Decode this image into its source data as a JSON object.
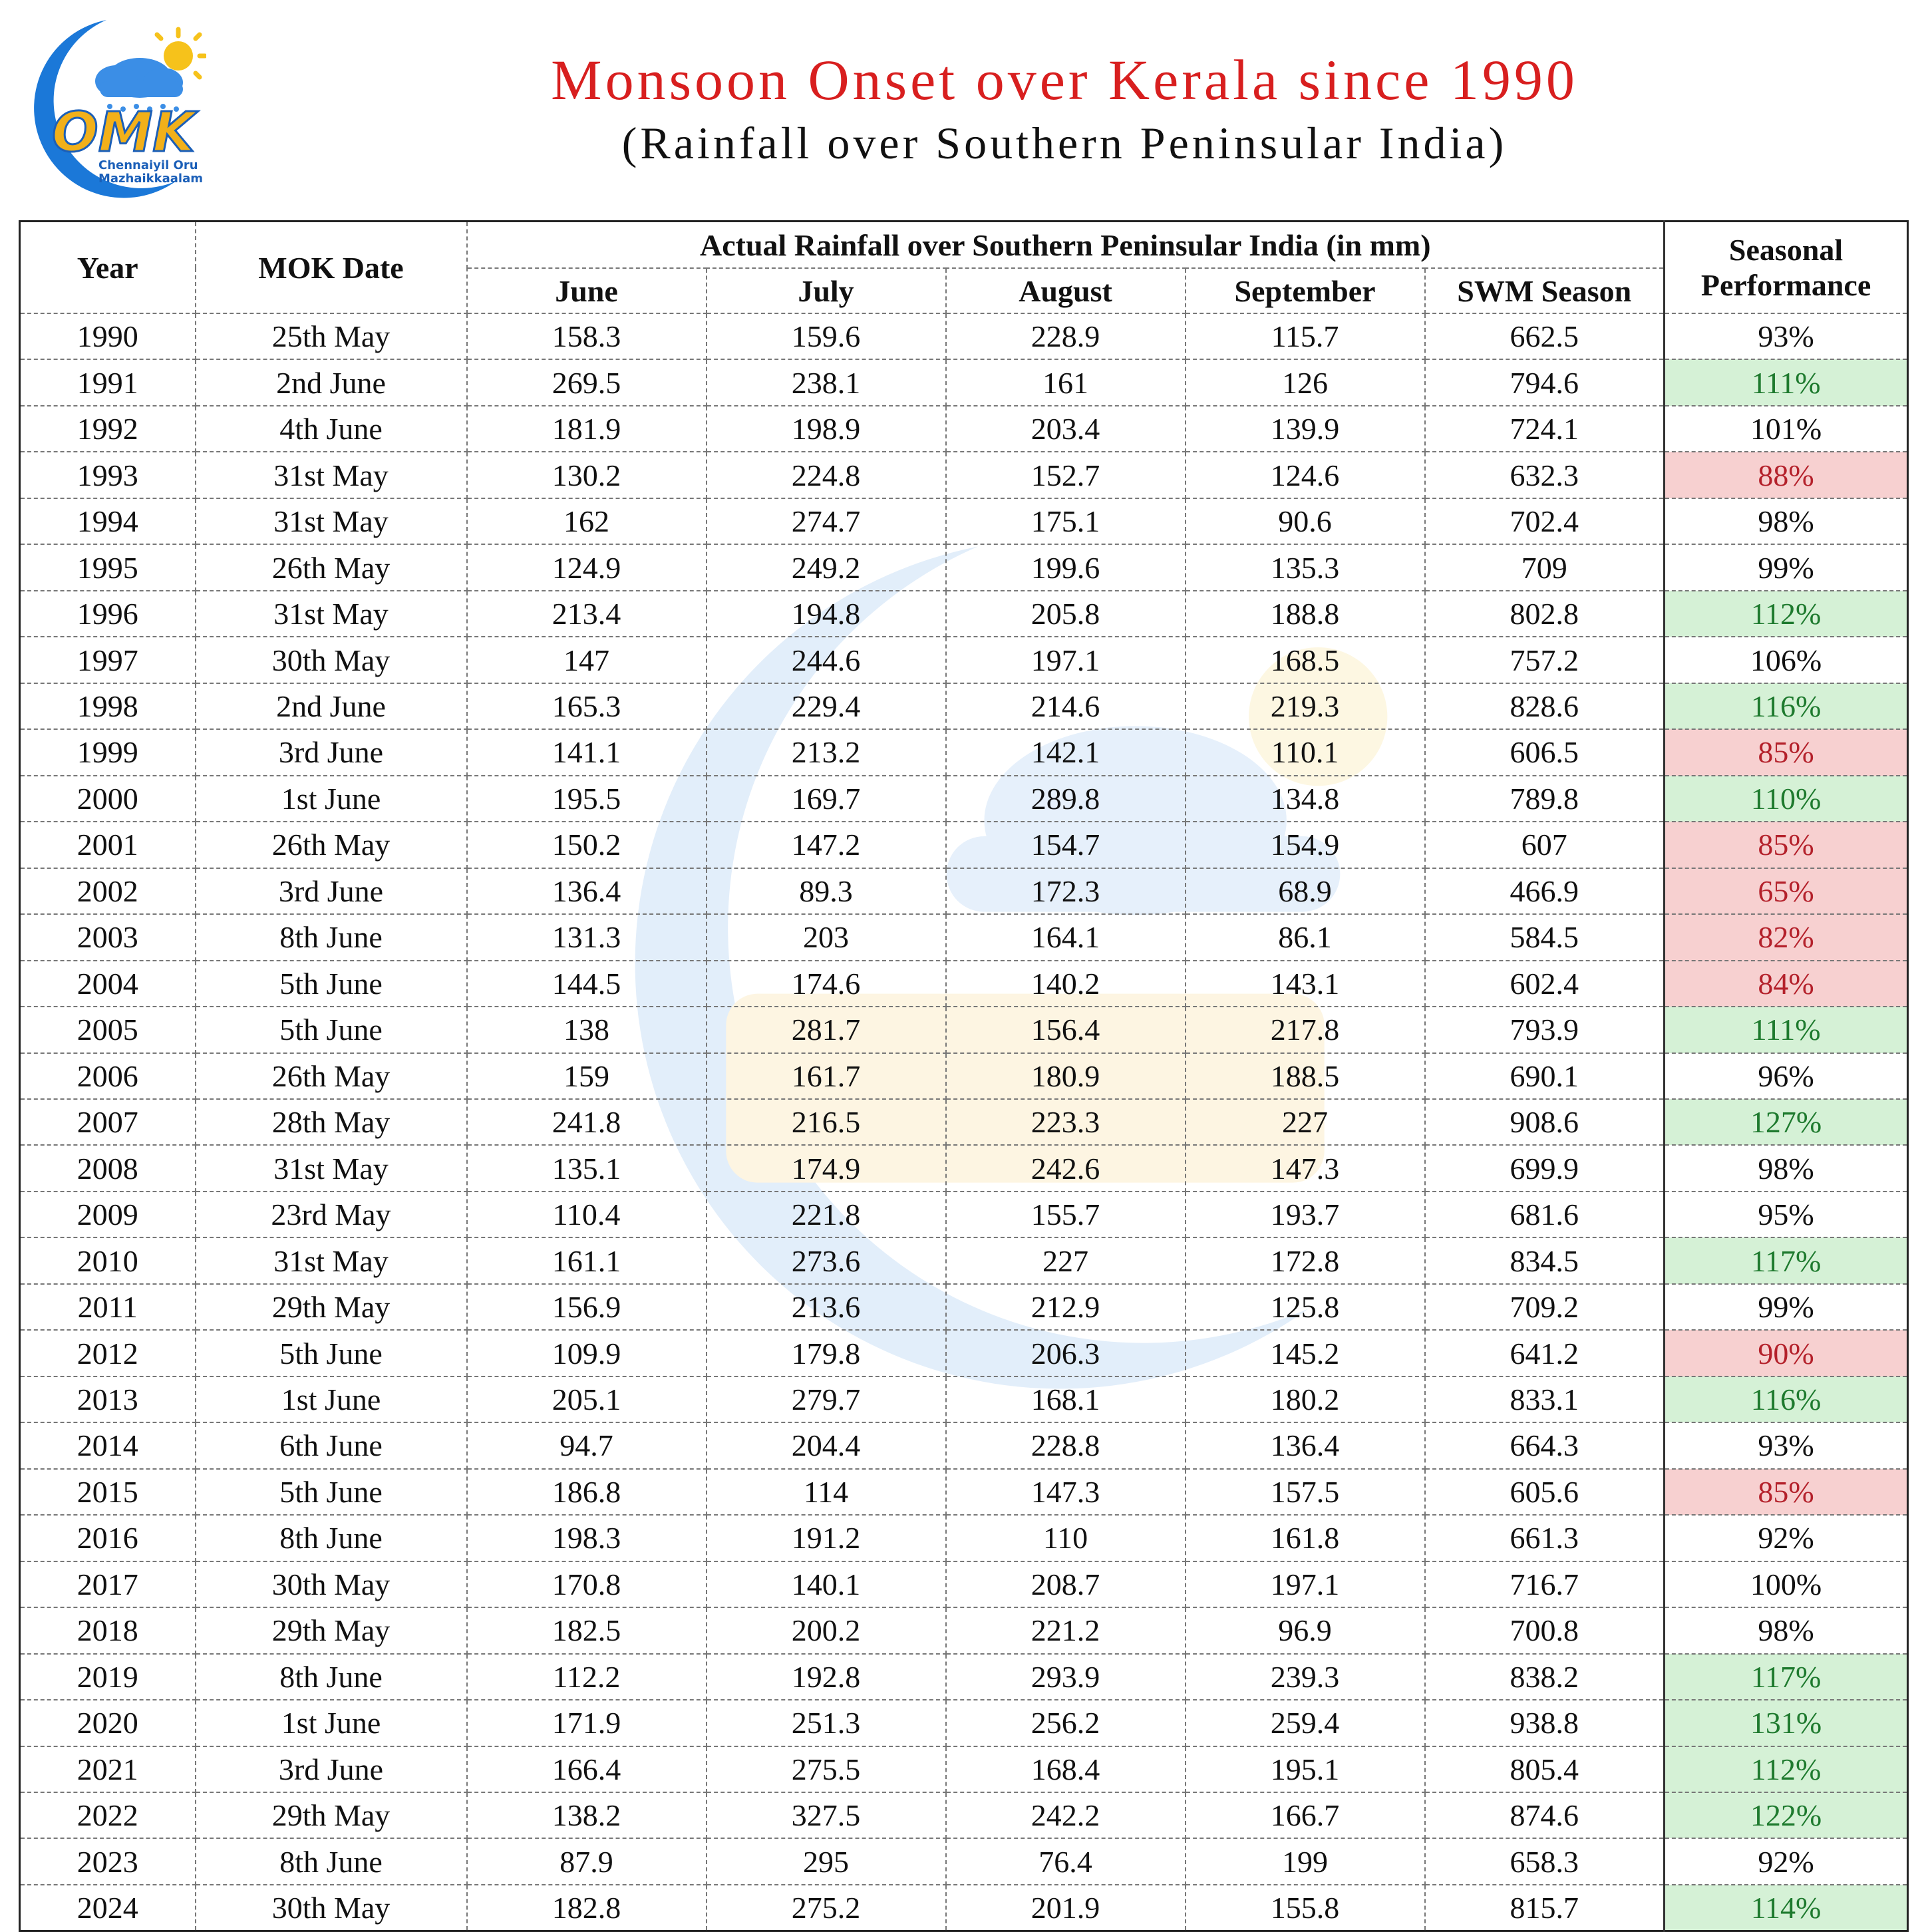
{
  "logo": {
    "text_line1": "Chennaiyil Oru",
    "text_line2": "Mazhaikkaalam",
    "mark": "OMK"
  },
  "title": "Monsoon Onset over Kerala since 1990",
  "subtitle": "(Rainfall over Southern Peninsular India)",
  "colors": {
    "title": "#d81f1f",
    "good_bg": "#d5f1d6",
    "good_text": "#1e7a2e",
    "bad_bg": "#f7d0d0",
    "bad_text": "#b4212b"
  },
  "table": {
    "headers": {
      "year": "Year",
      "mok_date": "MOK Date",
      "group": "Actual Rainfall over Southern Peninsular India (in mm)",
      "june": "June",
      "july": "July",
      "august": "August",
      "september": "September",
      "season": "SWM Season",
      "perf_line1": "Seasonal",
      "perf_line2": "Performance"
    },
    "rows": [
      {
        "year": "1990",
        "mok": "25th May",
        "june": "158.3",
        "july": "159.6",
        "august": "228.9",
        "september": "115.7",
        "season": "662.5",
        "perf": "93%",
        "status": "normal"
      },
      {
        "year": "1991",
        "mok": "2nd June",
        "june": "269.5",
        "july": "238.1",
        "august": "161",
        "september": "126",
        "season": "794.6",
        "perf": "111%",
        "status": "good"
      },
      {
        "year": "1992",
        "mok": "4th June",
        "june": "181.9",
        "july": "198.9",
        "august": "203.4",
        "september": "139.9",
        "season": "724.1",
        "perf": "101%",
        "status": "normal"
      },
      {
        "year": "1993",
        "mok": "31st May",
        "june": "130.2",
        "july": "224.8",
        "august": "152.7",
        "september": "124.6",
        "season": "632.3",
        "perf": "88%",
        "status": "bad"
      },
      {
        "year": "1994",
        "mok": "31st May",
        "june": "162",
        "july": "274.7",
        "august": "175.1",
        "september": "90.6",
        "season": "702.4",
        "perf": "98%",
        "status": "normal"
      },
      {
        "year": "1995",
        "mok": "26th May",
        "june": "124.9",
        "july": "249.2",
        "august": "199.6",
        "september": "135.3",
        "season": "709",
        "perf": "99%",
        "status": "normal"
      },
      {
        "year": "1996",
        "mok": "31st May",
        "june": "213.4",
        "july": "194.8",
        "august": "205.8",
        "september": "188.8",
        "season": "802.8",
        "perf": "112%",
        "status": "good"
      },
      {
        "year": "1997",
        "mok": "30th May",
        "june": "147",
        "july": "244.6",
        "august": "197.1",
        "september": "168.5",
        "season": "757.2",
        "perf": "106%",
        "status": "normal"
      },
      {
        "year": "1998",
        "mok": "2nd June",
        "june": "165.3",
        "july": "229.4",
        "august": "214.6",
        "september": "219.3",
        "season": "828.6",
        "perf": "116%",
        "status": "good"
      },
      {
        "year": "1999",
        "mok": "3rd June",
        "june": "141.1",
        "july": "213.2",
        "august": "142.1",
        "september": "110.1",
        "season": "606.5",
        "perf": "85%",
        "status": "bad"
      },
      {
        "year": "2000",
        "mok": "1st June",
        "june": "195.5",
        "july": "169.7",
        "august": "289.8",
        "september": "134.8",
        "season": "789.8",
        "perf": "110%",
        "status": "good"
      },
      {
        "year": "2001",
        "mok": "26th May",
        "june": "150.2",
        "july": "147.2",
        "august": "154.7",
        "september": "154.9",
        "season": "607",
        "perf": "85%",
        "status": "bad"
      },
      {
        "year": "2002",
        "mok": "3rd June",
        "june": "136.4",
        "july": "89.3",
        "august": "172.3",
        "september": "68.9",
        "season": "466.9",
        "perf": "65%",
        "status": "bad"
      },
      {
        "year": "2003",
        "mok": "8th June",
        "june": "131.3",
        "july": "203",
        "august": "164.1",
        "september": "86.1",
        "season": "584.5",
        "perf": "82%",
        "status": "bad"
      },
      {
        "year": "2004",
        "mok": "5th June",
        "june": "144.5",
        "july": "174.6",
        "august": "140.2",
        "september": "143.1",
        "season": "602.4",
        "perf": "84%",
        "status": "bad"
      },
      {
        "year": "2005",
        "mok": "5th June",
        "june": "138",
        "july": "281.7",
        "august": "156.4",
        "september": "217.8",
        "season": "793.9",
        "perf": "111%",
        "status": "good"
      },
      {
        "year": "2006",
        "mok": "26th May",
        "june": "159",
        "july": "161.7",
        "august": "180.9",
        "september": "188.5",
        "season": "690.1",
        "perf": "96%",
        "status": "normal"
      },
      {
        "year": "2007",
        "mok": "28th May",
        "june": "241.8",
        "july": "216.5",
        "august": "223.3",
        "september": "227",
        "season": "908.6",
        "perf": "127%",
        "status": "good"
      },
      {
        "year": "2008",
        "mok": "31st May",
        "june": "135.1",
        "july": "174.9",
        "august": "242.6",
        "september": "147.3",
        "season": "699.9",
        "perf": "98%",
        "status": "normal"
      },
      {
        "year": "2009",
        "mok": "23rd May",
        "june": "110.4",
        "july": "221.8",
        "august": "155.7",
        "september": "193.7",
        "season": "681.6",
        "perf": "95%",
        "status": "normal"
      },
      {
        "year": "2010",
        "mok": "31st May",
        "june": "161.1",
        "july": "273.6",
        "august": "227",
        "september": "172.8",
        "season": "834.5",
        "perf": "117%",
        "status": "good"
      },
      {
        "year": "2011",
        "mok": "29th May",
        "june": "156.9",
        "july": "213.6",
        "august": "212.9",
        "september": "125.8",
        "season": "709.2",
        "perf": "99%",
        "status": "normal"
      },
      {
        "year": "2012",
        "mok": "5th June",
        "june": "109.9",
        "july": "179.8",
        "august": "206.3",
        "september": "145.2",
        "season": "641.2",
        "perf": "90%",
        "status": "bad"
      },
      {
        "year": "2013",
        "mok": "1st June",
        "june": "205.1",
        "july": "279.7",
        "august": "168.1",
        "september": "180.2",
        "season": "833.1",
        "perf": "116%",
        "status": "good"
      },
      {
        "year": "2014",
        "mok": "6th June",
        "june": "94.7",
        "july": "204.4",
        "august": "228.8",
        "september": "136.4",
        "season": "664.3",
        "perf": "93%",
        "status": "normal"
      },
      {
        "year": "2015",
        "mok": "5th June",
        "june": "186.8",
        "july": "114",
        "august": "147.3",
        "september": "157.5",
        "season": "605.6",
        "perf": "85%",
        "status": "bad"
      },
      {
        "year": "2016",
        "mok": "8th June",
        "june": "198.3",
        "july": "191.2",
        "august": "110",
        "september": "161.8",
        "season": "661.3",
        "perf": "92%",
        "status": "normal"
      },
      {
        "year": "2017",
        "mok": "30th May",
        "june": "170.8",
        "july": "140.1",
        "august": "208.7",
        "september": "197.1",
        "season": "716.7",
        "perf": "100%",
        "status": "normal"
      },
      {
        "year": "2018",
        "mok": "29th May",
        "june": "182.5",
        "july": "200.2",
        "august": "221.2",
        "september": "96.9",
        "season": "700.8",
        "perf": "98%",
        "status": "normal"
      },
      {
        "year": "2019",
        "mok": "8th June",
        "june": "112.2",
        "july": "192.8",
        "august": "293.9",
        "september": "239.3",
        "season": "838.2",
        "perf": "117%",
        "status": "good"
      },
      {
        "year": "2020",
        "mok": "1st June",
        "june": "171.9",
        "july": "251.3",
        "august": "256.2",
        "september": "259.4",
        "season": "938.8",
        "perf": "131%",
        "status": "good"
      },
      {
        "year": "2021",
        "mok": "3rd June",
        "june": "166.4",
        "july": "275.5",
        "august": "168.4",
        "september": "195.1",
        "season": "805.4",
        "perf": "112%",
        "status": "good"
      },
      {
        "year": "2022",
        "mok": "29th May",
        "june": "138.2",
        "july": "327.5",
        "august": "242.2",
        "september": "166.7",
        "season": "874.6",
        "perf": "122%",
        "status": "good"
      },
      {
        "year": "2023",
        "mok": "8th June",
        "june": "87.9",
        "july": "295",
        "august": "76.4",
        "september": "199",
        "season": "658.3",
        "perf": "92%",
        "status": "normal"
      },
      {
        "year": "2024",
        "mok": "30th May",
        "june": "182.8",
        "july": "275.2",
        "august": "201.9",
        "september": "155.8",
        "season": "815.7",
        "perf": "114%",
        "status": "good"
      }
    ]
  }
}
